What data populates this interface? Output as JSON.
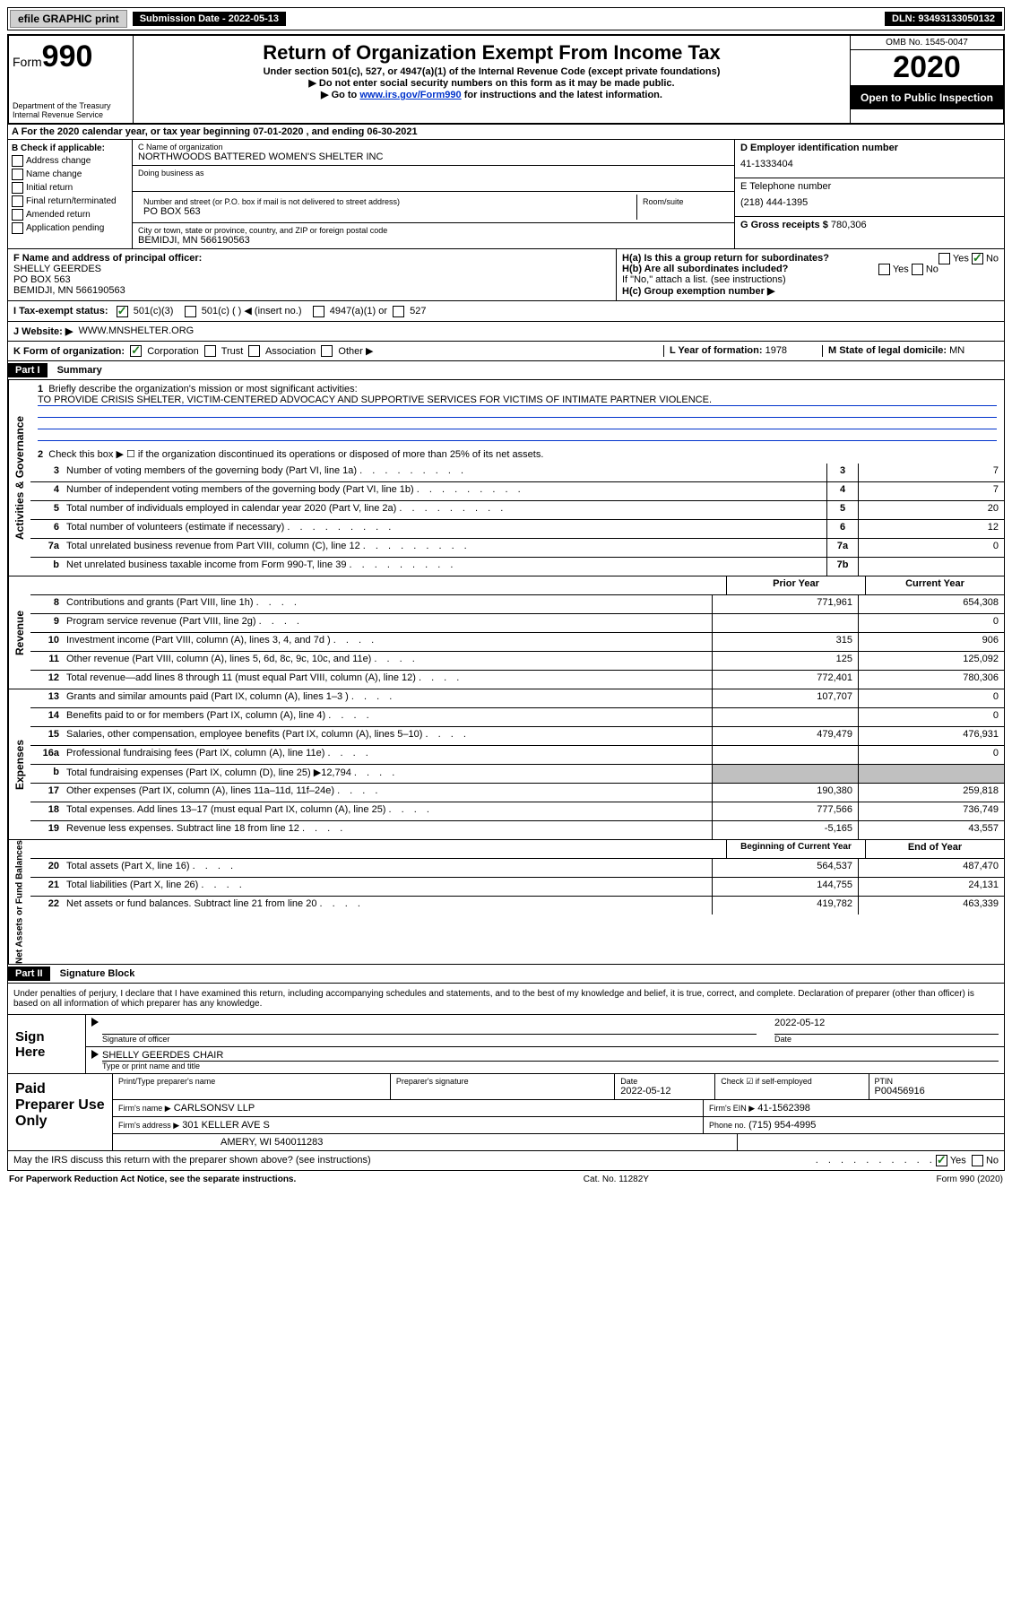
{
  "top": {
    "efile": "efile GRAPHIC print",
    "subdate_label": "Submission Date - 2022-05-13",
    "dln": "DLN: 93493133050132"
  },
  "header": {
    "form_label": "Form",
    "form_num": "990",
    "dept": "Department of the Treasury\nInternal Revenue Service",
    "title": "Return of Organization Exempt From Income Tax",
    "sub1": "Under section 501(c), 527, or 4947(a)(1) of the Internal Revenue Code (except private foundations)",
    "sub2": "▶ Do not enter social security numbers on this form as it may be made public.",
    "sub3_pre": "▶ Go to ",
    "sub3_link": "www.irs.gov/Form990",
    "sub3_post": " for instructions and the latest information.",
    "omb": "OMB No. 1545-0047",
    "year": "2020",
    "open": "Open to Public Inspection"
  },
  "row_a": "A For the 2020 calendar year, or tax year beginning 07-01-2020    , and ending 06-30-2021",
  "col_b": {
    "head": "B Check if applicable:",
    "items": [
      "Address change",
      "Name change",
      "Initial return",
      "Final return/terminated",
      "Amended return",
      "Application pending"
    ]
  },
  "col_c": {
    "name_label": "C Name of organization",
    "name": "NORTHWOODS BATTERED WOMEN'S SHELTER INC",
    "dba_label": "Doing business as",
    "addr_label": "Number and street (or P.O. box if mail is not delivered to street address)",
    "room_label": "Room/suite",
    "addr": "PO BOX 563",
    "city_label": "City or town, state or province, country, and ZIP or foreign postal code",
    "city": "BEMIDJI, MN  566190563"
  },
  "col_d": {
    "ein_label": "D Employer identification number",
    "ein": "41-1333404",
    "phone_label": "E Telephone number",
    "phone": "(218) 444-1395",
    "gross_label": "G Gross receipts $",
    "gross": "780,306"
  },
  "row_f": {
    "label": "F Name and address of principal officer:",
    "name": "SHELLY GEERDES",
    "addr1": "PO BOX 563",
    "addr2": "BEMIDJI, MN  566190563",
    "ha": "H(a)  Is this a group return for subordinates?",
    "hb": "H(b)  Are all subordinates included?",
    "hb_note": "If \"No,\" attach a list. (see instructions)",
    "hc": "H(c)  Group exemption number ▶",
    "yes": "Yes",
    "no": "No"
  },
  "tax": {
    "label": "I   Tax-exempt status:",
    "opt1": "501(c)(3)",
    "opt2": "501(c) (  ) ◀ (insert no.)",
    "opt3": "4947(a)(1) or",
    "opt4": "527"
  },
  "row_j": {
    "label": "J   Website: ▶",
    "val": "WWW.MNSHELTER.ORG"
  },
  "row_k": {
    "label": "K Form of organization:",
    "corp": "Corporation",
    "trust": "Trust",
    "assoc": "Association",
    "other": "Other ▶",
    "l_label": "L Year of formation:",
    "l_val": "1978",
    "m_label": "M State of legal domicile:",
    "m_val": "MN"
  },
  "part1": {
    "header": "Part I",
    "title": "Summary",
    "side_ag": "Activities & Governance",
    "line1_label": "Briefly describe the organization's mission or most significant activities:",
    "line1_text": "TO PROVIDE CRISIS SHELTER, VICTIM-CENTERED ADVOCACY AND SUPPORTIVE SERVICES FOR VICTIMS OF INTIMATE PARTNER VIOLENCE.",
    "line2": "Check this box ▶ ☐  if the organization discontinued its operations or disposed of more than 25% of its net assets.",
    "lines_ag": [
      {
        "n": "3",
        "d": "Number of voting members of the governing body (Part VI, line 1a)",
        "box": "3",
        "v": "7"
      },
      {
        "n": "4",
        "d": "Number of independent voting members of the governing body (Part VI, line 1b)",
        "box": "4",
        "v": "7"
      },
      {
        "n": "5",
        "d": "Total number of individuals employed in calendar year 2020 (Part V, line 2a)",
        "box": "5",
        "v": "20"
      },
      {
        "n": "6",
        "d": "Total number of volunteers (estimate if necessary)",
        "box": "6",
        "v": "12"
      },
      {
        "n": "7a",
        "d": "Total unrelated business revenue from Part VIII, column (C), line 12",
        "box": "7a",
        "v": "0"
      },
      {
        "n": "b",
        "d": "Net unrelated business taxable income from Form 990-T, line 39",
        "box": "7b",
        "v": ""
      }
    ],
    "side_rev": "Revenue",
    "py": "Prior Year",
    "cy": "Current Year",
    "lines_rev": [
      {
        "n": "8",
        "d": "Contributions and grants (Part VIII, line 1h)",
        "py": "771,961",
        "cy": "654,308"
      },
      {
        "n": "9",
        "d": "Program service revenue (Part VIII, line 2g)",
        "py": "",
        "cy": "0"
      },
      {
        "n": "10",
        "d": "Investment income (Part VIII, column (A), lines 3, 4, and 7d )",
        "py": "315",
        "cy": "906"
      },
      {
        "n": "11",
        "d": "Other revenue (Part VIII, column (A), lines 5, 6d, 8c, 9c, 10c, and 11e)",
        "py": "125",
        "cy": "125,092"
      },
      {
        "n": "12",
        "d": "Total revenue—add lines 8 through 11 (must equal Part VIII, column (A), line 12)",
        "py": "772,401",
        "cy": "780,306"
      }
    ],
    "side_exp": "Expenses",
    "lines_exp": [
      {
        "n": "13",
        "d": "Grants and similar amounts paid (Part IX, column (A), lines 1–3 )",
        "py": "107,707",
        "cy": "0"
      },
      {
        "n": "14",
        "d": "Benefits paid to or for members (Part IX, column (A), line 4)",
        "py": "",
        "cy": "0"
      },
      {
        "n": "15",
        "d": "Salaries, other compensation, employee benefits (Part IX, column (A), lines 5–10)",
        "py": "479,479",
        "cy": "476,931"
      },
      {
        "n": "16a",
        "d": "Professional fundraising fees (Part IX, column (A), line 11e)",
        "py": "",
        "cy": "0"
      },
      {
        "n": "b",
        "d": "Total fundraising expenses (Part IX, column (D), line 25) ▶12,794",
        "py": "shaded",
        "cy": "shaded"
      },
      {
        "n": "17",
        "d": "Other expenses (Part IX, column (A), lines 11a–11d, 11f–24e)",
        "py": "190,380",
        "cy": "259,818"
      },
      {
        "n": "18",
        "d": "Total expenses. Add lines 13–17 (must equal Part IX, column (A), line 25)",
        "py": "777,566",
        "cy": "736,749"
      },
      {
        "n": "19",
        "d": "Revenue less expenses. Subtract line 18 from line 12",
        "py": "-5,165",
        "cy": "43,557"
      }
    ],
    "side_na": "Net Assets or Fund Balances",
    "boy": "Beginning of Current Year",
    "eoy": "End of Year",
    "lines_na": [
      {
        "n": "20",
        "d": "Total assets (Part X, line 16)",
        "py": "564,537",
        "cy": "487,470"
      },
      {
        "n": "21",
        "d": "Total liabilities (Part X, line 26)",
        "py": "144,755",
        "cy": "24,131"
      },
      {
        "n": "22",
        "d": "Net assets or fund balances. Subtract line 21 from line 20",
        "py": "419,782",
        "cy": "463,339"
      }
    ]
  },
  "part2": {
    "header": "Part II",
    "title": "Signature Block",
    "decl": "Under penalties of perjury, I declare that I have examined this return, including accompanying schedules and statements, and to the best of my knowledge and belief, it is true, correct, and complete. Declaration of preparer (other than officer) is based on all information of which preparer has any knowledge."
  },
  "sign": {
    "left": "Sign Here",
    "sig_officer": "Signature of officer",
    "date": "2022-05-12",
    "date_label": "Date",
    "name": "SHELLY GEERDES CHAIR",
    "name_label": "Type or print name and title"
  },
  "paid": {
    "left": "Paid Preparer Use Only",
    "h1": "Print/Type preparer's name",
    "h2": "Preparer's signature",
    "h3": "Date",
    "h3v": "2022-05-12",
    "h4": "Check ☑ if self-employed",
    "h5": "PTIN",
    "h5v": "P00456916",
    "firm_label": "Firm's name    ▶",
    "firm": "CARLSONSV LLP",
    "ein_label": "Firm's EIN ▶",
    "ein": "41-1562398",
    "addr_label": "Firm's address ▶",
    "addr1": "301 KELLER AVE S",
    "addr2": "AMERY, WI  540011283",
    "phone_label": "Phone no.",
    "phone": "(715) 954-4995",
    "discuss": "May the IRS discuss this return with the preparer shown above? (see instructions)",
    "yes": "Yes",
    "no": "No"
  },
  "footer": {
    "left": "For Paperwork Reduction Act Notice, see the separate instructions.",
    "mid": "Cat. No. 11282Y",
    "right": "Form 990 (2020)"
  }
}
